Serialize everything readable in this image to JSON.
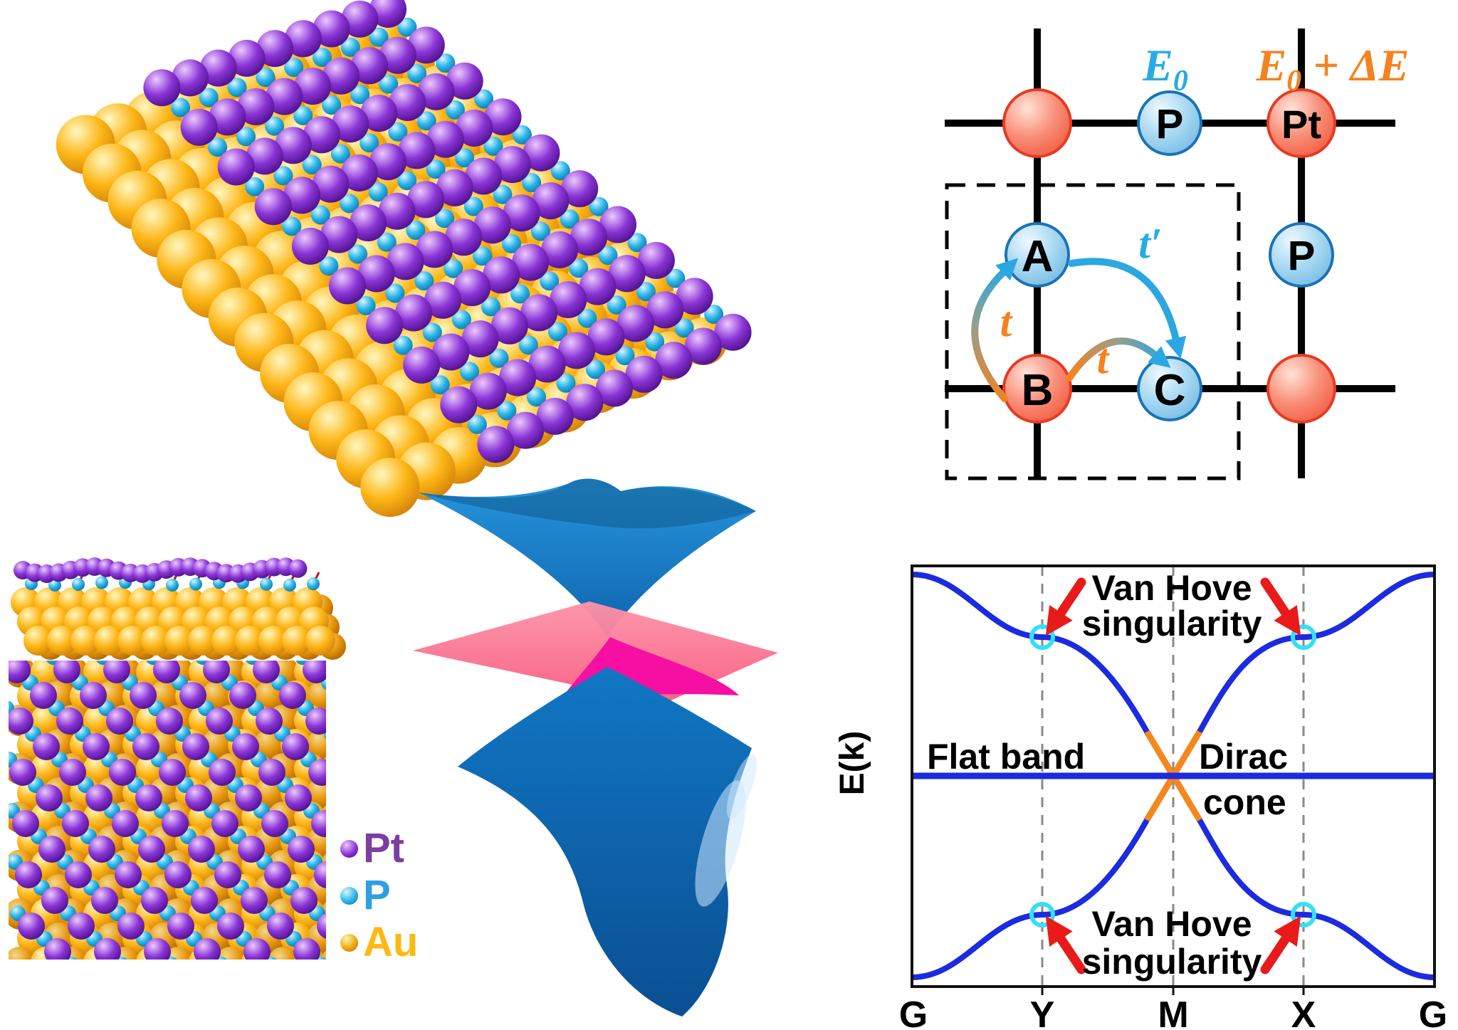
{
  "figure": {
    "background": "#ffffff"
  },
  "legend": {
    "items": [
      {
        "label": "Pt",
        "color": "#7b3fa0",
        "sphere": [
          "#edc9ff",
          "#8a35d6",
          "#42077a"
        ]
      },
      {
        "label": "P",
        "color": "#2e9fe0",
        "sphere": [
          "#d8f6ff",
          "#2ab4e8",
          "#0b6a9c"
        ]
      },
      {
        "label": "Au",
        "color": "#fdb813",
        "sphere": [
          "#fff3b0",
          "#f0a90c",
          "#9c6a02"
        ]
      }
    ]
  },
  "structure_render": {
    "bond_color": "#c01010",
    "gold": [
      "#fff7c0",
      "#fdb515",
      "#c97708"
    ],
    "gold_dark": [
      "#f3d98a",
      "#e9960b",
      "#a05c04"
    ],
    "purple": [
      "#edc9ff",
      "#8a35d6",
      "#42077a"
    ],
    "cyan": [
      "#d8f6ff",
      "#2ab4e8",
      "#0b6a9c"
    ]
  },
  "dirac_render": {
    "colors": {
      "surface": "#2796dd",
      "surface_deep": "#0e63ad",
      "shade": "#0b507f",
      "plane_light": "#fd93a9",
      "plane": "#f85c80",
      "magenta": "#f50fa3",
      "lower": "#1177c4",
      "lower_deep": "#0a4f92",
      "gloss": "#cfeaff"
    }
  },
  "lattice_model": {
    "site_labels": {
      "A": "A",
      "B": "B",
      "C": "C",
      "P_top": "P",
      "P_right": "P",
      "Pt": "Pt"
    },
    "onsite_P": {
      "base": "E",
      "sub": "0"
    },
    "onsite_Pt": {
      "base": "E",
      "sub": "0",
      "delta": " + ΔE"
    },
    "hoppings": {
      "t1": "t",
      "t2": "t",
      "t_prime": "t′"
    },
    "colors": {
      "p_fill": "#a9d9f3",
      "p_stroke": "#1a73b5",
      "pt_fill": "#f9907a",
      "pt_stroke": "#e63b23",
      "e0_text": "#29abe2",
      "delta_text": "#f58220",
      "pt_text": "#6633aa",
      "p_text": "#1b6cb5",
      "line": "#000000",
      "arrow_blue": "#2ba7e2",
      "arrow_orange": "#f58220"
    }
  },
  "chart_data": {
    "type": "line",
    "title": "",
    "ylabel": "E(k)",
    "x_tick_labels": [
      "G",
      "Y",
      "M",
      "X",
      "G"
    ],
    "x": [
      0,
      1,
      2,
      3,
      4
    ],
    "ylim": [
      -1.05,
      1.05
    ],
    "grid": true,
    "gridlines_at": [
      "Y",
      "M",
      "X"
    ],
    "series": [
      {
        "name": "flat band",
        "color": "#1c2be0",
        "values": [
          0,
          0,
          0,
          0,
          0
        ]
      },
      {
        "name": "dispersive band upper-left to lower-right",
        "color": "#1c2be0",
        "values": [
          0.96,
          0.66,
          0,
          -0.66,
          -0.96
        ]
      },
      {
        "name": "dispersive band lower-left to upper-right",
        "color": "#1c2be0",
        "values": [
          -0.96,
          -0.66,
          0,
          0.66,
          0.96
        ]
      }
    ],
    "dirac_point": {
      "k": "M",
      "E": 0,
      "highlight_color": "#f5871f"
    },
    "van_hove_points": [
      {
        "k": "Y",
        "E": 0.66
      },
      {
        "k": "X",
        "E": 0.66
      },
      {
        "k": "Y",
        "E": -0.66
      },
      {
        "k": "X",
        "E": -0.66
      }
    ],
    "marker_color": "#35dff5",
    "arrow_color": "#e81a1a",
    "labels": {
      "flat_band": "Flat band",
      "dirac_line1": "Dirac",
      "dirac_line2": "cone",
      "van_hove_line1": "Van Hove",
      "van_hove_line2": "singularity"
    }
  }
}
